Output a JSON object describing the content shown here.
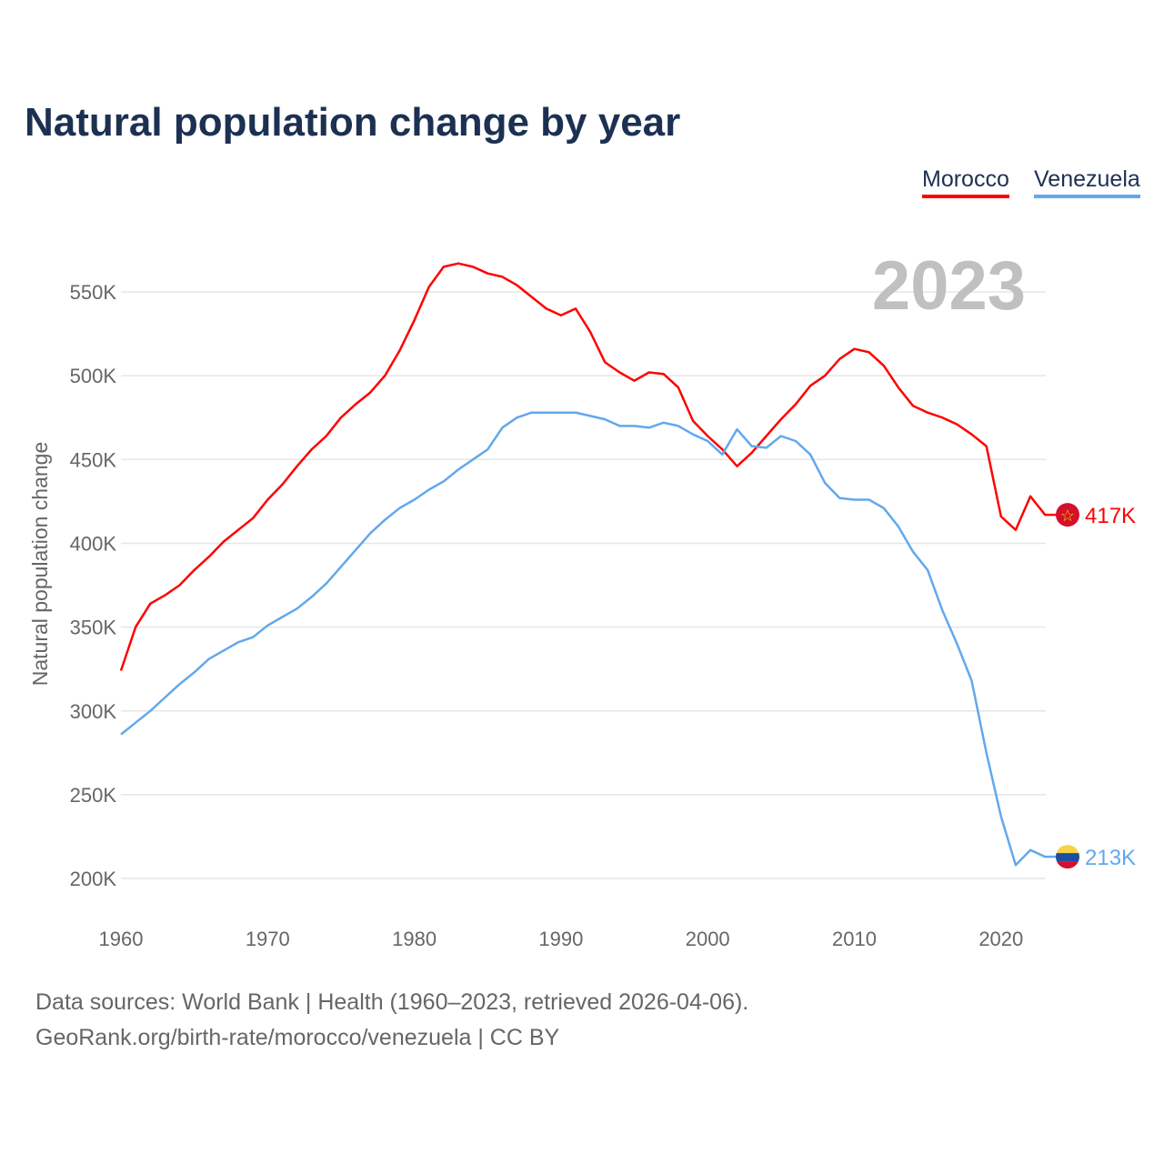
{
  "chart_data": {
    "type": "line",
    "title": "Natural population change by year",
    "xlabel": "",
    "ylabel": "Natural population change",
    "xlim": [
      1960,
      2023
    ],
    "ylim": [
      200000,
      550000
    ],
    "x_ticks": [
      "1960",
      "1970",
      "1980",
      "1990",
      "2000",
      "2010",
      "2020"
    ],
    "y_ticks": [
      "200K",
      "250K",
      "300K",
      "350K",
      "400K",
      "450K",
      "500K",
      "550K"
    ],
    "y_tick_values": [
      200,
      250,
      300,
      350,
      400,
      450,
      500,
      550
    ],
    "x_tick_values": [
      1960,
      1970,
      1980,
      1990,
      2000,
      2010,
      2020
    ],
    "units": "thousands",
    "year_label": "2023",
    "grid": true,
    "legend_placement": "top-right",
    "x": [
      1960,
      1961,
      1962,
      1963,
      1964,
      1965,
      1966,
      1967,
      1968,
      1969,
      1970,
      1971,
      1972,
      1973,
      1974,
      1975,
      1976,
      1977,
      1978,
      1979,
      1980,
      1981,
      1982,
      1983,
      1984,
      1985,
      1986,
      1987,
      1988,
      1989,
      1990,
      1991,
      1992,
      1993,
      1994,
      1995,
      1996,
      1997,
      1998,
      1999,
      2000,
      2001,
      2002,
      2003,
      2004,
      2005,
      2006,
      2007,
      2008,
      2009,
      2010,
      2011,
      2012,
      2013,
      2014,
      2015,
      2016,
      2017,
      2018,
      2019,
      2020,
      2021,
      2022,
      2023
    ],
    "series": [
      {
        "name": "Morocco",
        "color": "#ff0000",
        "end_label": "417K",
        "values": [
          324,
          350,
          364,
          369,
          375,
          384,
          392,
          401,
          408,
          415,
          426,
          435,
          446,
          456,
          464,
          475,
          483,
          490,
          500,
          515,
          533,
          553,
          565,
          567,
          565,
          561,
          559,
          554,
          547,
          540,
          536,
          540,
          526,
          508,
          502,
          497,
          502,
          501,
          493,
          473,
          464,
          456,
          446,
          454,
          464,
          474,
          483,
          494,
          500,
          510,
          516,
          514,
          506,
          493,
          482,
          478,
          475,
          471,
          465,
          458,
          416,
          408,
          428,
          417
        ]
      },
      {
        "name": "Venezuela",
        "color": "#62a8ec",
        "end_label": "213K",
        "values": [
          286,
          293,
          300,
          308,
          316,
          323,
          331,
          336,
          341,
          344,
          351,
          356,
          361,
          368,
          376,
          386,
          396,
          406,
          414,
          421,
          426,
          432,
          437,
          444,
          450,
          456,
          469,
          475,
          478,
          478,
          478,
          478,
          476,
          474,
          470,
          470,
          469,
          472,
          470,
          465,
          461,
          453,
          468,
          458,
          457,
          464,
          461,
          453,
          436,
          427,
          426,
          426,
          421,
          410,
          395,
          384,
          360,
          340,
          318,
          275,
          237,
          208,
          217,
          213
        ]
      }
    ]
  },
  "footer": {
    "line1": "Data sources: World Bank | Health (1960–2023, retrieved 2026-04-06).",
    "line2": "GeoRank.org/birth-rate/morocco/venezuela | CC BY"
  }
}
